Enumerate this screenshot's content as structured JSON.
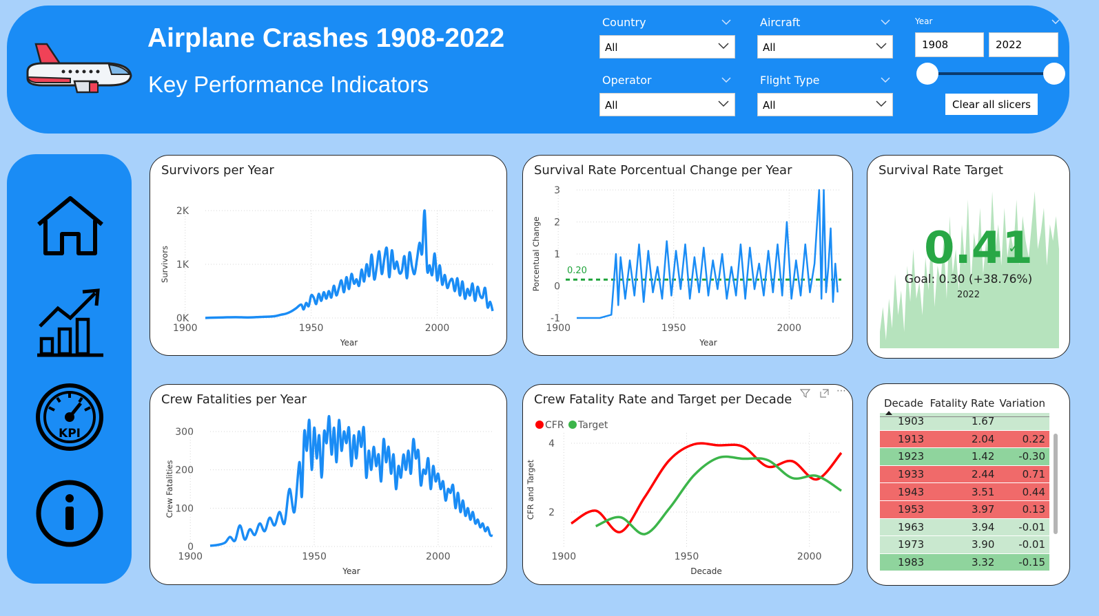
{
  "header": {
    "title": "Airplane Crashes 1908-2022",
    "subtitle": "Key Performance Indicators"
  },
  "filters": {
    "country": {
      "label": "Country",
      "value": "All"
    },
    "aircraft": {
      "label": "Aircraft",
      "value": "All"
    },
    "operator": {
      "label": "Operator",
      "value": "All"
    },
    "flight_type": {
      "label": "Flight Type",
      "value": "All"
    },
    "year": {
      "label": "Year",
      "from": "1908",
      "to": "2022"
    },
    "clear_label": "Clear all slicers"
  },
  "nav": [
    "home-icon",
    "growth-chart-icon",
    "kpi-gauge-icon",
    "info-icon"
  ],
  "cards": {
    "survivors_title": "Survivors per Year",
    "change_title": "Survival Rate Porcentual Change per Year",
    "target_title": "Survival Rate Target",
    "crew_title": "Crew Fatalities per Year",
    "cfr_title": "Crew Fatality Rate and Target per Decade"
  },
  "kpi": {
    "value": "0.41",
    "goal": "Goal: 0.30 (+38.76%)",
    "year": "2022",
    "colors": {
      "value": "#28a745",
      "area": "#b6e3bd"
    }
  },
  "decade_table": {
    "headers": [
      "Decade",
      "Fatality Rate",
      "Variation"
    ],
    "rows": [
      {
        "decade": "1903",
        "rate": "1.67",
        "variation": "",
        "color": "#c9e8cf"
      },
      {
        "decade": "1913",
        "rate": "2.04",
        "variation": "0.22",
        "color": "#f06a6a"
      },
      {
        "decade": "1923",
        "rate": "1.42",
        "variation": "-0.30",
        "color": "#8fd49d"
      },
      {
        "decade": "1933",
        "rate": "2.44",
        "variation": "0.71",
        "color": "#f06a6a"
      },
      {
        "decade": "1943",
        "rate": "3.51",
        "variation": "0.44",
        "color": "#f06a6a"
      },
      {
        "decade": "1953",
        "rate": "3.97",
        "variation": "0.13",
        "color": "#f06a6a"
      },
      {
        "decade": "1963",
        "rate": "3.94",
        "variation": "-0.01",
        "color": "#c9e8cf"
      },
      {
        "decade": "1973",
        "rate": "3.90",
        "variation": "-0.01",
        "color": "#c9e8cf"
      },
      {
        "decade": "1983",
        "rate": "3.32",
        "variation": "-0.15",
        "color": "#8fd49d"
      }
    ]
  },
  "chart_data": [
    {
      "type": "line",
      "title": "Survivors per Year",
      "xlabel": "Year",
      "ylabel": "Survivors",
      "xlim": [
        1908,
        2022
      ],
      "ylim": [
        0,
        2000
      ],
      "xticks": [
        "1900",
        "1950",
        "2000"
      ],
      "yticks": [
        "0K",
        "1K",
        "2K"
      ],
      "color": "#1a8cf5",
      "x": [
        1908,
        1910,
        1915,
        1920,
        1925,
        1930,
        1935,
        1938,
        1940,
        1942,
        1944,
        1946,
        1947,
        1948,
        1949,
        1950,
        1951,
        1952,
        1953,
        1954,
        1955,
        1956,
        1957,
        1958,
        1959,
        1960,
        1961,
        1962,
        1963,
        1964,
        1965,
        1966,
        1967,
        1968,
        1969,
        1970,
        1971,
        1972,
        1973,
        1974,
        1975,
        1976,
        1977,
        1978,
        1979,
        1980,
        1981,
        1982,
        1983,
        1984,
        1985,
        1986,
        1987,
        1988,
        1989,
        1990,
        1991,
        1992,
        1993,
        1994,
        1995,
        1996,
        1997,
        1998,
        1999,
        2000,
        2001,
        2002,
        2003,
        2004,
        2005,
        2006,
        2007,
        2008,
        2009,
        2010,
        2011,
        2012,
        2013,
        2014,
        2015,
        2016,
        2017,
        2018,
        2019,
        2020,
        2021,
        2022
      ],
      "y": [
        0,
        5,
        10,
        15,
        10,
        20,
        30,
        60,
        80,
        120,
        180,
        250,
        160,
        280,
        220,
        420,
        380,
        260,
        450,
        320,
        480,
        360,
        500,
        380,
        600,
        420,
        560,
        700,
        480,
        760,
        540,
        820,
        640,
        720,
        600,
        900,
        680,
        1000,
        780,
        1180,
        720,
        950,
        1240,
        820,
        1100,
        1300,
        760,
        1260,
        920,
        1050,
        840,
        880,
        1150,
        740,
        1220,
        960,
        820,
        1100,
        1400,
        1200,
        2000,
        900,
        980,
        800,
        1200,
        700,
        980,
        620,
        800,
        560,
        680,
        720,
        500,
        740,
        420,
        680,
        360,
        540,
        420,
        640,
        320,
        580,
        420,
        380,
        560,
        200,
        300,
        130
      ]
    },
    {
      "type": "line",
      "title": "Survival Rate Porcentual Change per Year",
      "xlabel": "Year",
      "ylabel": "Porcentual Change",
      "xlim": [
        1908,
        2022
      ],
      "ylim": [
        -1,
        3
      ],
      "xticks": [
        "1900",
        "1950",
        "2000"
      ],
      "yticks": [
        "-1",
        "0",
        "1",
        "2",
        "3"
      ],
      "target": 0.2,
      "target_label": "0.20",
      "color": "#1a8cf5",
      "target_color": "#1fa33a",
      "x": [
        1908,
        1918,
        1923,
        1925,
        1926,
        1927,
        1929,
        1931,
        1933,
        1935,
        1937,
        1939,
        1941,
        1943,
        1945,
        1947,
        1949,
        1951,
        1953,
        1955,
        1957,
        1959,
        1961,
        1963,
        1965,
        1967,
        1969,
        1971,
        1973,
        1975,
        1977,
        1979,
        1981,
        1983,
        1985,
        1987,
        1989,
        1991,
        1993,
        1995,
        1997,
        1999,
        2001,
        2003,
        2005,
        2007,
        2009,
        2011,
        2013,
        2014,
        2015,
        2016,
        2017,
        2018,
        2019,
        2020,
        2021
      ],
      "y": [
        -1,
        -1,
        -0.9,
        1,
        -0.6,
        0.9,
        -0.4,
        0.8,
        -0.3,
        1.3,
        -0.5,
        1.1,
        -0.2,
        0.6,
        -0.4,
        1.4,
        -0.3,
        1.1,
        -0.1,
        1.3,
        -0.4,
        0.9,
        -0.2,
        1.2,
        -0.3,
        0.8,
        -0.1,
        1.0,
        -0.4,
        0.6,
        -0.3,
        1.3,
        -0.4,
        1.2,
        -0.1,
        0.7,
        -0.3,
        1.1,
        -0.2,
        1.3,
        -0.3,
        2.0,
        -0.4,
        0.8,
        -0.3,
        1.3,
        -0.2,
        0.7,
        3,
        -0.4,
        3,
        -0.2,
        0.6,
        1.8,
        -0.5,
        0.7,
        -0.2
      ]
    },
    {
      "type": "line",
      "title": "Crew Fatalities per Year",
      "xlabel": "Year",
      "ylabel": "Crew Fatalities",
      "xlim": [
        1908,
        2022
      ],
      "ylim": [
        0,
        300
      ],
      "xticks": [
        "1900",
        "1950",
        "2000"
      ],
      "yticks": [
        "0",
        "100",
        "200",
        "300"
      ],
      "color": "#1a8cf5",
      "x": [
        1908,
        1911,
        1914,
        1916,
        1918,
        1920,
        1922,
        1924,
        1926,
        1928,
        1930,
        1932,
        1934,
        1936,
        1938,
        1940,
        1942,
        1944,
        1945,
        1946,
        1947,
        1948,
        1949,
        1950,
        1951,
        1952,
        1953,
        1954,
        1955,
        1956,
        1957,
        1958,
        1959,
        1960,
        1961,
        1962,
        1963,
        1964,
        1965,
        1966,
        1967,
        1968,
        1969,
        1970,
        1971,
        1972,
        1973,
        1974,
        1975,
        1976,
        1977,
        1978,
        1979,
        1980,
        1981,
        1982,
        1983,
        1984,
        1985,
        1986,
        1987,
        1988,
        1989,
        1990,
        1991,
        1992,
        1993,
        1994,
        1995,
        1996,
        1997,
        1998,
        1999,
        2000,
        2001,
        2002,
        2003,
        2004,
        2005,
        2006,
        2007,
        2008,
        2009,
        2010,
        2011,
        2012,
        2013,
        2014,
        2015,
        2016,
        2017,
        2018,
        2019,
        2020,
        2021,
        2022
      ],
      "y": [
        2,
        4,
        10,
        25,
        15,
        55,
        18,
        45,
        30,
        60,
        40,
        75,
        55,
        90,
        60,
        150,
        90,
        220,
        130,
        300,
        250,
        330,
        200,
        310,
        230,
        290,
        180,
        300,
        270,
        340,
        240,
        310,
        220,
        330,
        250,
        300,
        270,
        310,
        210,
        290,
        230,
        300,
        260,
        310,
        180,
        250,
        200,
        260,
        210,
        240,
        170,
        280,
        220,
        260,
        190,
        240,
        150,
        210,
        180,
        240,
        200,
        250,
        190,
        280,
        230,
        250,
        160,
        200,
        190,
        230,
        150,
        210,
        170,
        190,
        150,
        170,
        120,
        150,
        140,
        160,
        100,
        140,
        90,
        120,
        80,
        100,
        70,
        90,
        60,
        70,
        50,
        60,
        40,
        50,
        30,
        28
      ]
    },
    {
      "type": "line",
      "title": "Crew Fatality Rate and Target per Decade",
      "xlabel": "Decade",
      "ylabel": "CFR and Target",
      "xlim": [
        1903,
        2013
      ],
      "ylim": [
        1,
        4.3
      ],
      "xticks": [
        "1900",
        "1950",
        "2000"
      ],
      "yticks": [
        "2",
        "4"
      ],
      "series": [
        {
          "name": "CFR",
          "color": "#ff0000",
          "x": [
            1903,
            1913,
            1923,
            1933,
            1943,
            1953,
            1963,
            1973,
            1983,
            1993,
            2003,
            2013
          ],
          "y": [
            1.67,
            2.04,
            1.42,
            2.44,
            3.51,
            3.97,
            3.94,
            3.9,
            3.32,
            3.48,
            2.95,
            3.72
          ]
        },
        {
          "name": "Target",
          "color": "#3cb54a",
          "x": [
            1913,
            1923,
            1933,
            1943,
            1953,
            1963,
            1973,
            1983,
            1993,
            2003,
            2013
          ],
          "y": [
            1.59,
            1.85,
            1.36,
            2.11,
            3.07,
            3.58,
            3.55,
            3.51,
            2.99,
            3.05,
            2.62
          ]
        }
      ]
    },
    {
      "type": "area",
      "title": "Survival Rate Target",
      "color": "#b6e3bd",
      "values": [
        0.1,
        0.25,
        0.05,
        0.3,
        0.12,
        0.45,
        0.2,
        0.35,
        0.1,
        0.5,
        0.28,
        0.6,
        0.3,
        0.4,
        0.2,
        0.55,
        0.35,
        0.7,
        0.25,
        0.5,
        0.4,
        0.65,
        0.3,
        0.8,
        0.45,
        0.6,
        0.35,
        0.75,
        0.5,
        0.9,
        0.4,
        0.7,
        0.55,
        0.85,
        0.45,
        0.65,
        0.5,
        0.95,
        0.6,
        0.75,
        0.5,
        0.85,
        0.55,
        0.7,
        0.6,
        0.9,
        0.5,
        0.8,
        0.65,
        0.55,
        0.75,
        0.95,
        0.6,
        0.7,
        0.85,
        0.5,
        0.75,
        0.65,
        0.8,
        0.6
      ]
    }
  ]
}
